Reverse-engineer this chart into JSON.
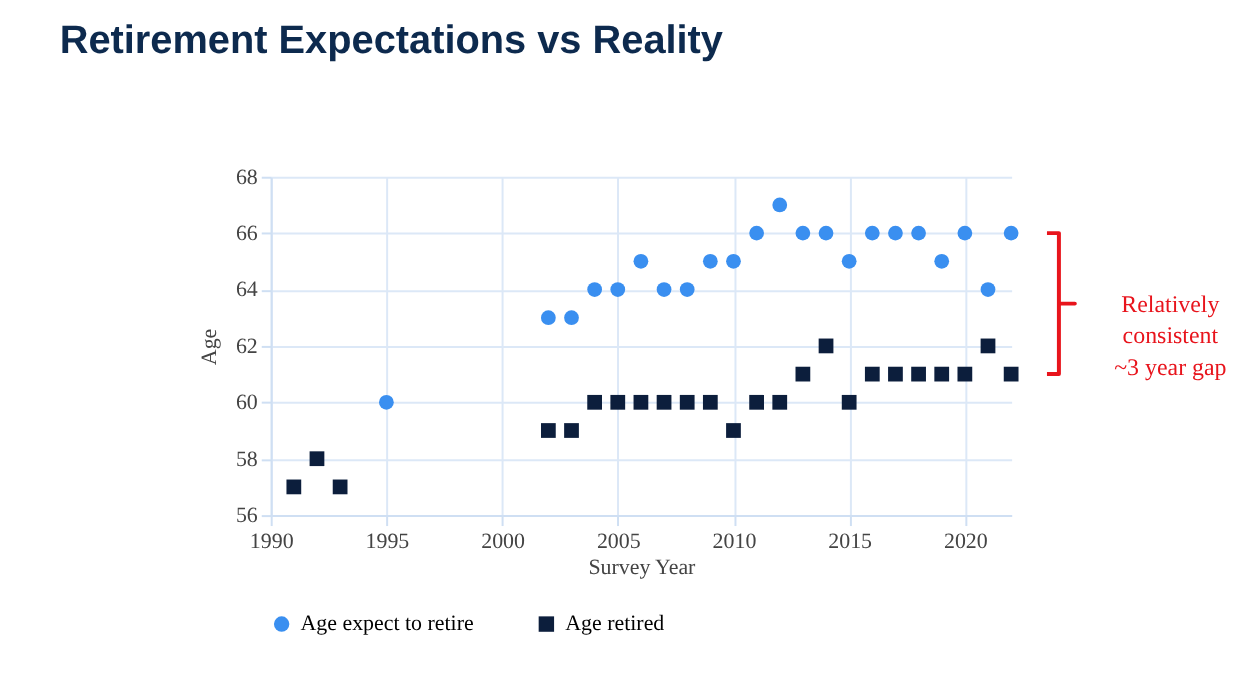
{
  "chart_data": {
    "type": "scatter",
    "title": "Retirement Expectations vs Reality",
    "xlabel": "Survey Year",
    "ylabel": "Age",
    "x": [
      1991,
      1992,
      1993,
      1995,
      2002,
      2003,
      2004,
      2005,
      2006,
      2007,
      2008,
      2009,
      2010,
      2011,
      2012,
      2013,
      2014,
      2015,
      2016,
      2017,
      2018,
      2019,
      2020,
      2021,
      2022
    ],
    "series": [
      {
        "name": "Age expect to retire",
        "color": "#3a8ff0",
        "marker": "circle",
        "values": [
          null,
          null,
          null,
          60,
          63,
          63,
          64,
          64,
          65,
          64,
          64,
          65,
          65,
          66,
          67,
          66,
          66,
          65,
          66,
          66,
          66,
          65,
          66,
          64,
          66
        ]
      },
      {
        "name": "Age retired",
        "color": "#0c1e3c",
        "marker": "square",
        "values": [
          57,
          58,
          57,
          null,
          59,
          59,
          60,
          60,
          60,
          60,
          60,
          60,
          59,
          60,
          60,
          61,
          62,
          60,
          61,
          61,
          61,
          61,
          61,
          62,
          61
        ]
      }
    ],
    "xlim": [
      1990,
      2022
    ],
    "xticks": [
      1990,
      1995,
      2000,
      2005,
      2010,
      2015,
      2020
    ],
    "ylim": [
      56,
      68
    ],
    "yticks": [
      56,
      58,
      60,
      62,
      64,
      66,
      68
    ],
    "grid": true,
    "legend": "bottom",
    "annotations": [
      "Relatively consistent ~3 year gap"
    ]
  }
}
